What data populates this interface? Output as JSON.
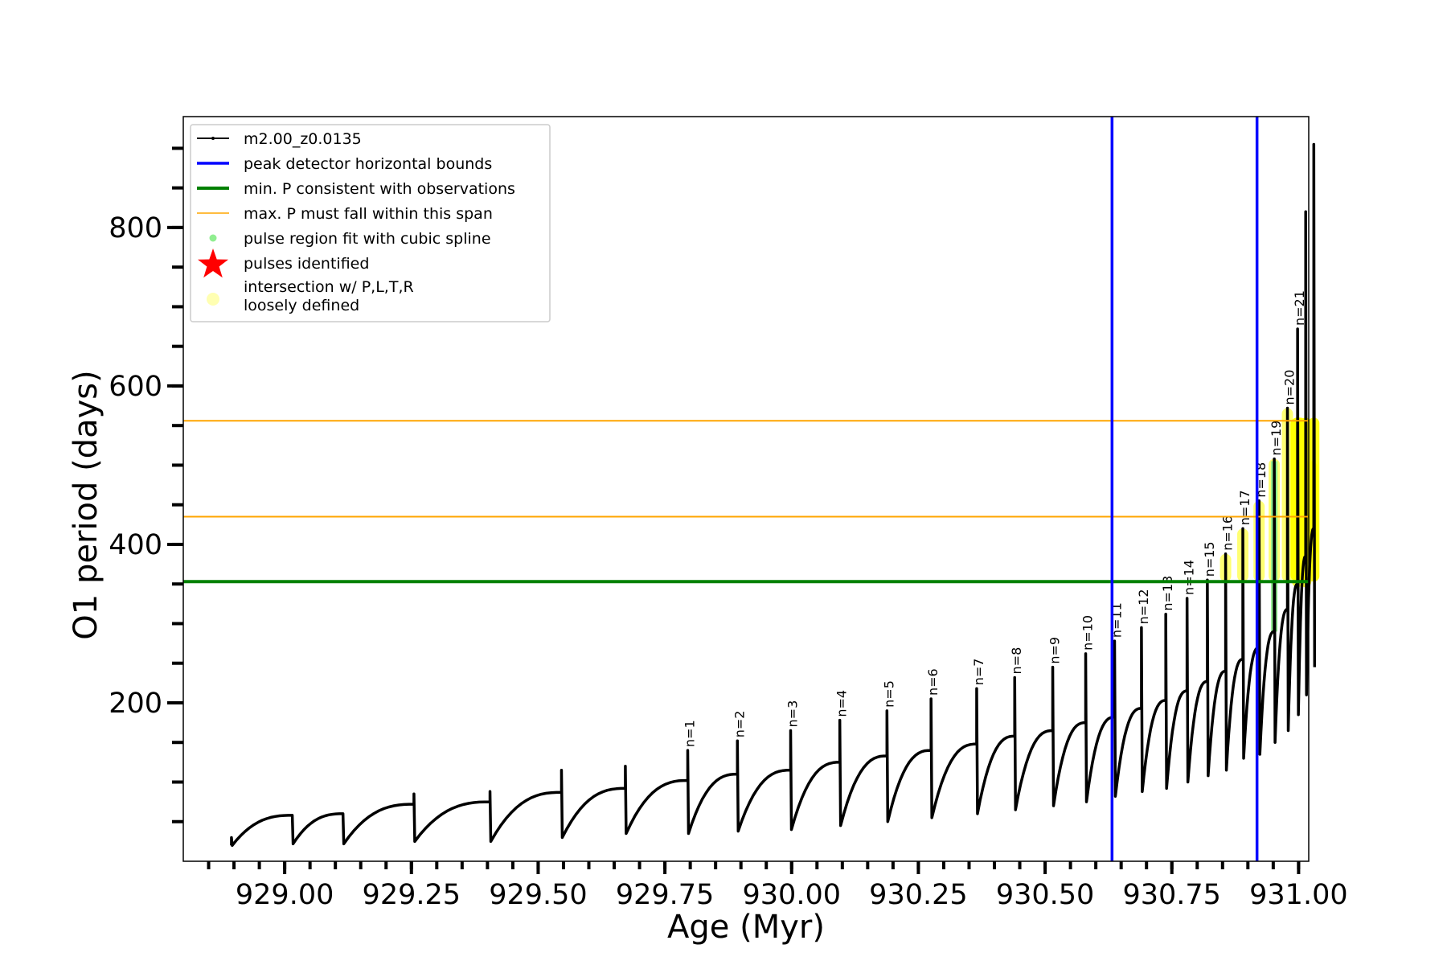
{
  "chart_data": {
    "type": "line",
    "xlabel": "Age (Myr)",
    "ylabel": "O1 period (days)",
    "xlim": [
      928.8,
      931.02
    ],
    "ylim": [
      0,
      940
    ],
    "xticks": [
      929.0,
      929.25,
      929.5,
      929.75,
      930.0,
      930.25,
      930.5,
      930.75,
      931.0
    ],
    "xtick_labels": [
      "929.00",
      "929.25",
      "929.50",
      "929.75",
      "930.00",
      "930.25",
      "930.50",
      "930.75",
      "931.00"
    ],
    "yticks": [
      200,
      400,
      600,
      800
    ],
    "ytick_labels": [
      "200",
      "400",
      "600",
      "800"
    ],
    "grid": false,
    "legend_position": "top-left",
    "series": [
      {
        "name": "m2.00_z0.0135",
        "color": "#000000",
        "pulses": [
          {
            "age": 928.895,
            "start": 20,
            "peak": 30,
            "pre": 22,
            "label": ""
          },
          {
            "age": 929.015,
            "start": 22,
            "peak": 58,
            "pre": 58,
            "label": ""
          },
          {
            "age": 929.115,
            "start": 22,
            "peak": 60,
            "pre": 60,
            "label": ""
          },
          {
            "age": 929.255,
            "start": 25,
            "peak": 85,
            "pre": 72,
            "label": ""
          },
          {
            "age": 929.405,
            "start": 25,
            "peak": 88,
            "pre": 75,
            "label": ""
          },
          {
            "age": 929.546,
            "start": 30,
            "peak": 115,
            "pre": 87,
            "label": ""
          },
          {
            "age": 929.672,
            "start": 35,
            "peak": 120,
            "pre": 92,
            "label": ""
          },
          {
            "age": 929.795,
            "start": 35,
            "peak": 140,
            "pre": 102,
            "label": "n=1"
          },
          {
            "age": 929.893,
            "start": 38,
            "peak": 152,
            "pre": 110,
            "label": "n=2"
          },
          {
            "age": 929.998,
            "start": 40,
            "peak": 165,
            "pre": 115,
            "label": "n=3"
          },
          {
            "age": 930.095,
            "start": 45,
            "peak": 178,
            "pre": 125,
            "label": "n=4"
          },
          {
            "age": 930.188,
            "start": 50,
            "peak": 190,
            "pre": 133,
            "label": "n=5"
          },
          {
            "age": 930.275,
            "start": 55,
            "peak": 205,
            "pre": 140,
            "label": "n=6"
          },
          {
            "age": 930.365,
            "start": 60,
            "peak": 218,
            "pre": 148,
            "label": "n=7"
          },
          {
            "age": 930.44,
            "start": 65,
            "peak": 232,
            "pre": 158,
            "label": "n=8"
          },
          {
            "age": 930.515,
            "start": 70,
            "peak": 245,
            "pre": 165,
            "label": "n=9"
          },
          {
            "age": 930.58,
            "start": 75,
            "peak": 262,
            "pre": 175,
            "label": "n=10"
          },
          {
            "age": 930.637,
            "start": 82,
            "peak": 278,
            "pre": 182,
            "label": "n=11"
          },
          {
            "age": 930.69,
            "start": 88,
            "peak": 295,
            "pre": 193,
            "label": "n=12"
          },
          {
            "age": 930.738,
            "start": 92,
            "peak": 312,
            "pre": 203,
            "label": "n=13"
          },
          {
            "age": 930.78,
            "start": 100,
            "peak": 332,
            "pre": 215,
            "label": "n=14"
          },
          {
            "age": 930.82,
            "start": 108,
            "peak": 355,
            "pre": 227,
            "label": "n=15"
          },
          {
            "age": 930.856,
            "start": 115,
            "peak": 388,
            "pre": 240,
            "label": "n=16"
          },
          {
            "age": 930.89,
            "start": 130,
            "peak": 420,
            "pre": 255,
            "label": "n=17"
          },
          {
            "age": 930.922,
            "start": 135,
            "peak": 455,
            "pre": 270,
            "label": "n=18"
          },
          {
            "age": 930.952,
            "start": 150,
            "peak": 508,
            "pre": 290,
            "label": "n=19"
          },
          {
            "age": 930.978,
            "start": 165,
            "peak": 572,
            "pre": 318,
            "label": "n=20"
          },
          {
            "age": 930.998,
            "start": 185,
            "peak": 672,
            "pre": 350,
            "label": "n=21"
          },
          {
            "age": 931.014,
            "start": 210,
            "peak": 820,
            "pre": 385,
            "label": ""
          },
          {
            "age": 931.03,
            "start": 245,
            "peak": 905,
            "pre": 420,
            "label": ""
          }
        ]
      }
    ],
    "vlines": {
      "name": "peak detector horizontal bounds",
      "color": "#0000ff",
      "x": [
        930.632,
        930.918
      ]
    },
    "hline_min": {
      "name": "min. P consistent with observations",
      "color": "#008000",
      "y": 353
    },
    "hlines_max": {
      "name": "max. P must fall within this span",
      "color": "#ffa500",
      "y": [
        435,
        556
      ]
    },
    "spline_region": {
      "name": "pulse region fit with cubic spline",
      "color": "#90ee90"
    },
    "pulses_identified": {
      "name": "pulses identified",
      "color": "#ff0000"
    },
    "intersection": {
      "name": "intersection w/ P,L,T,R\nloosely defined",
      "color": "#ffff00"
    }
  },
  "legend": {
    "items": [
      "m2.00_z0.0135",
      "peak detector horizontal bounds",
      "min. P consistent with observations",
      "max. P must fall within this span",
      "pulse region fit with cubic spline",
      "pulses identified"
    ],
    "intersection_line1": "intersection w/ P,L,T,R",
    "intersection_line2": "loosely defined"
  }
}
